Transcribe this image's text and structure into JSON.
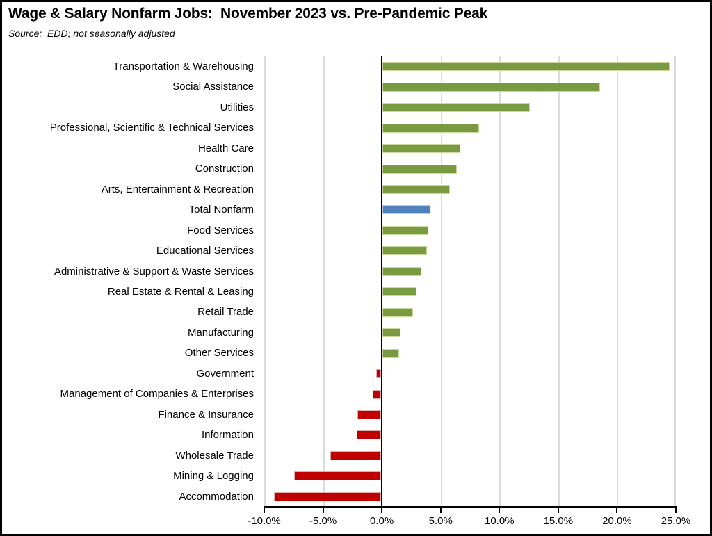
{
  "header": {
    "title": "Wage & Salary Nonfarm Jobs:  November 2023 vs. Pre-Pandemic Peak",
    "source": "Source:  EDD; not seasonally adjusted"
  },
  "chart_data": {
    "type": "bar",
    "orientation": "horizontal",
    "title": "Wage & Salary Nonfarm Jobs:  November 2023 vs. Pre-Pandemic Peak",
    "subtitle": "Source:  EDD; not seasonally adjusted",
    "xlabel": "",
    "ylabel": "",
    "xlim": [
      -10,
      25
    ],
    "grid": true,
    "x_tick_step": 5,
    "x_tick_labels": [
      "-10.0%",
      "-5.0%",
      "0.0%",
      "5.0%",
      "10.0%",
      "15.0%",
      "20.0%",
      "25.0%"
    ],
    "unit": "percent",
    "categories": [
      "Transportation & Warehousing",
      "Social Assistance",
      "Utilities",
      "Professional, Scientific & Technical Services",
      "Health Care",
      "Construction",
      "Arts, Entertainment & Recreation",
      "Total Nonfarm",
      "Food Services",
      "Educational Services",
      "Administrative & Support & Waste Services",
      "Real Estate & Rental & Leasing",
      "Retail Trade",
      "Manufacturing",
      "Other Services",
      "Government",
      "Management of Companies & Enterprises",
      "Finance & Insurance",
      "Information",
      "Wholesale Trade",
      "Mining & Logging",
      "Accommodation"
    ],
    "values": [
      24.4,
      18.5,
      12.5,
      8.2,
      6.6,
      6.3,
      5.7,
      4.1,
      3.9,
      3.8,
      3.3,
      2.9,
      2.6,
      1.5,
      1.4,
      -0.4,
      -0.7,
      -2.0,
      -2.1,
      -4.3,
      -7.4,
      -9.1
    ],
    "bar_types": [
      "pos",
      "pos",
      "pos",
      "pos",
      "pos",
      "pos",
      "pos",
      "total",
      "pos",
      "pos",
      "pos",
      "pos",
      "pos",
      "pos",
      "pos",
      "neg",
      "neg",
      "neg",
      "neg",
      "neg",
      "neg",
      "neg"
    ],
    "colors": {
      "pos": "#7A9A41",
      "neg": "#C00000",
      "total": "#4F81BD",
      "pos_border": "#C9DA9C",
      "neg_border": "#E2AEAD",
      "total_border": "#B9CDE5",
      "gridline": "#DCDCDC",
      "axis": "#000000"
    },
    "legend": null
  }
}
